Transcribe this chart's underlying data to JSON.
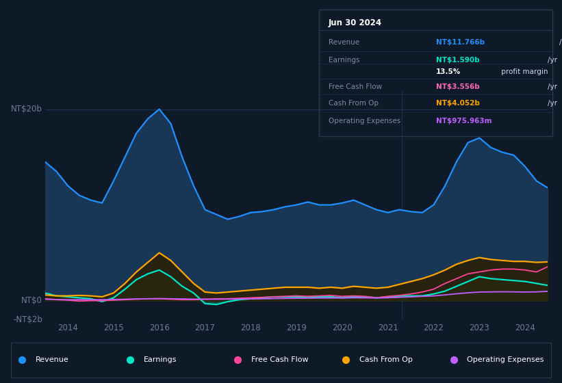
{
  "bg_color": "#0e1a27",
  "plot_bg_color": "#0e1a27",
  "info_box_bg": "#0a0f18",
  "info_box_date": "Jun 30 2024",
  "info_box_rows": [
    {
      "label": "Revenue",
      "value": "NT$11.766b",
      "unit": "/yr",
      "value_color": "#1e90ff"
    },
    {
      "label": "Earnings",
      "value": "NT$1.590b",
      "unit": "/yr",
      "value_color": "#00e5c8"
    },
    {
      "label": "",
      "value": "13.5%",
      "unit": " profit margin",
      "value_color": "#ffffff"
    },
    {
      "label": "Free Cash Flow",
      "value": "NT$3.556b",
      "unit": "/yr",
      "value_color": "#ff69b4"
    },
    {
      "label": "Cash From Op",
      "value": "NT$4.052b",
      "unit": "/yr",
      "value_color": "#ffa500"
    },
    {
      "label": "Operating Expenses",
      "value": "NT$975.963m",
      "unit": "/yr",
      "value_color": "#bf5fff"
    }
  ],
  "years": [
    2013.5,
    2013.75,
    2014.0,
    2014.25,
    2014.5,
    2014.75,
    2015.0,
    2015.25,
    2015.5,
    2015.75,
    2016.0,
    2016.25,
    2016.5,
    2016.75,
    2017.0,
    2017.25,
    2017.5,
    2017.75,
    2018.0,
    2018.25,
    2018.5,
    2018.75,
    2019.0,
    2019.25,
    2019.5,
    2019.75,
    2020.0,
    2020.25,
    2020.5,
    2020.75,
    2021.0,
    2021.25,
    2021.5,
    2021.75,
    2022.0,
    2022.25,
    2022.5,
    2022.75,
    2023.0,
    2023.25,
    2023.5,
    2023.75,
    2024.0,
    2024.25,
    2024.5
  ],
  "revenue": [
    14.5,
    13.5,
    12.0,
    11.0,
    10.5,
    10.2,
    12.5,
    15.0,
    17.5,
    19.0,
    20.0,
    18.5,
    15.0,
    12.0,
    9.5,
    9.0,
    8.5,
    8.8,
    9.2,
    9.3,
    9.5,
    9.8,
    10.0,
    10.3,
    10.0,
    10.0,
    10.2,
    10.5,
    10.0,
    9.5,
    9.2,
    9.5,
    9.3,
    9.2,
    10.0,
    12.0,
    14.5,
    16.5,
    17.0,
    16.0,
    15.5,
    15.2,
    14.0,
    12.5,
    11.766
  ],
  "earnings": [
    0.8,
    0.5,
    0.4,
    0.3,
    0.2,
    -0.1,
    0.3,
    1.2,
    2.2,
    2.8,
    3.2,
    2.5,
    1.5,
    0.8,
    -0.3,
    -0.4,
    -0.1,
    0.1,
    0.2,
    0.3,
    0.4,
    0.4,
    0.4,
    0.4,
    0.4,
    0.4,
    0.3,
    0.4,
    0.4,
    0.3,
    0.4,
    0.5,
    0.5,
    0.5,
    0.7,
    1.0,
    1.5,
    2.0,
    2.5,
    2.3,
    2.2,
    2.1,
    2.0,
    1.8,
    1.59
  ],
  "free_cash_flow": [
    0.2,
    0.1,
    0.05,
    -0.05,
    0.0,
    0.0,
    0.05,
    0.1,
    0.15,
    0.2,
    0.2,
    0.15,
    0.1,
    0.1,
    0.15,
    0.2,
    0.2,
    0.25,
    0.3,
    0.35,
    0.4,
    0.45,
    0.5,
    0.45,
    0.5,
    0.55,
    0.45,
    0.5,
    0.45,
    0.3,
    0.45,
    0.55,
    0.7,
    0.9,
    1.2,
    1.8,
    2.3,
    2.8,
    3.0,
    3.2,
    3.3,
    3.3,
    3.2,
    3.0,
    3.556
  ],
  "cash_from_op": [
    0.6,
    0.5,
    0.5,
    0.55,
    0.5,
    0.4,
    0.8,
    1.8,
    3.0,
    4.0,
    5.0,
    4.2,
    3.0,
    1.8,
    0.9,
    0.8,
    0.9,
    1.0,
    1.1,
    1.2,
    1.3,
    1.4,
    1.4,
    1.4,
    1.3,
    1.4,
    1.3,
    1.5,
    1.4,
    1.3,
    1.4,
    1.7,
    2.0,
    2.3,
    2.7,
    3.2,
    3.8,
    4.2,
    4.5,
    4.3,
    4.2,
    4.1,
    4.1,
    4.0,
    4.052
  ],
  "op_expenses": [
    0.15,
    0.12,
    0.1,
    0.1,
    0.1,
    0.1,
    0.12,
    0.15,
    0.18,
    0.2,
    0.22,
    0.2,
    0.18,
    0.16,
    0.15,
    0.15,
    0.16,
    0.17,
    0.18,
    0.2,
    0.22,
    0.24,
    0.25,
    0.26,
    0.27,
    0.28,
    0.28,
    0.3,
    0.29,
    0.28,
    0.3,
    0.35,
    0.4,
    0.45,
    0.5,
    0.6,
    0.72,
    0.82,
    0.9,
    0.92,
    0.93,
    0.92,
    0.9,
    0.92,
    0.976
  ],
  "revenue_line_color": "#1e90ff",
  "earnings_line_color": "#00e5c8",
  "fcf_line_color": "#ff4499",
  "cash_op_line_color": "#ffa500",
  "op_exp_line_color": "#bf5fff",
  "revenue_fill_color": "#1a3a5c",
  "earnings_fill_color": "#1a4a40",
  "cash_op_fill_color": "#2d1f00",
  "grid_line_color": "#1e3050",
  "axis_label_color": "#6a7f96",
  "tick_label_color": "#6a7f96",
  "ylim_min": -2,
  "ylim_max": 22,
  "xticks": [
    2014,
    2015,
    2016,
    2017,
    2018,
    2019,
    2020,
    2021,
    2022,
    2023,
    2024
  ],
  "ytick_positions": [
    -2,
    0,
    20
  ],
  "ytick_labels": [
    "-NT$2b",
    "NT$0",
    "NT$20b"
  ],
  "divider_x": 2021.3,
  "legend_items": [
    {
      "label": "Revenue",
      "color": "#1e90ff"
    },
    {
      "label": "Earnings",
      "color": "#00e5c8"
    },
    {
      "label": "Free Cash Flow",
      "color": "#ff4499"
    },
    {
      "label": "Cash From Op",
      "color": "#ffa500"
    },
    {
      "label": "Operating Expenses",
      "color": "#bf5fff"
    }
  ]
}
